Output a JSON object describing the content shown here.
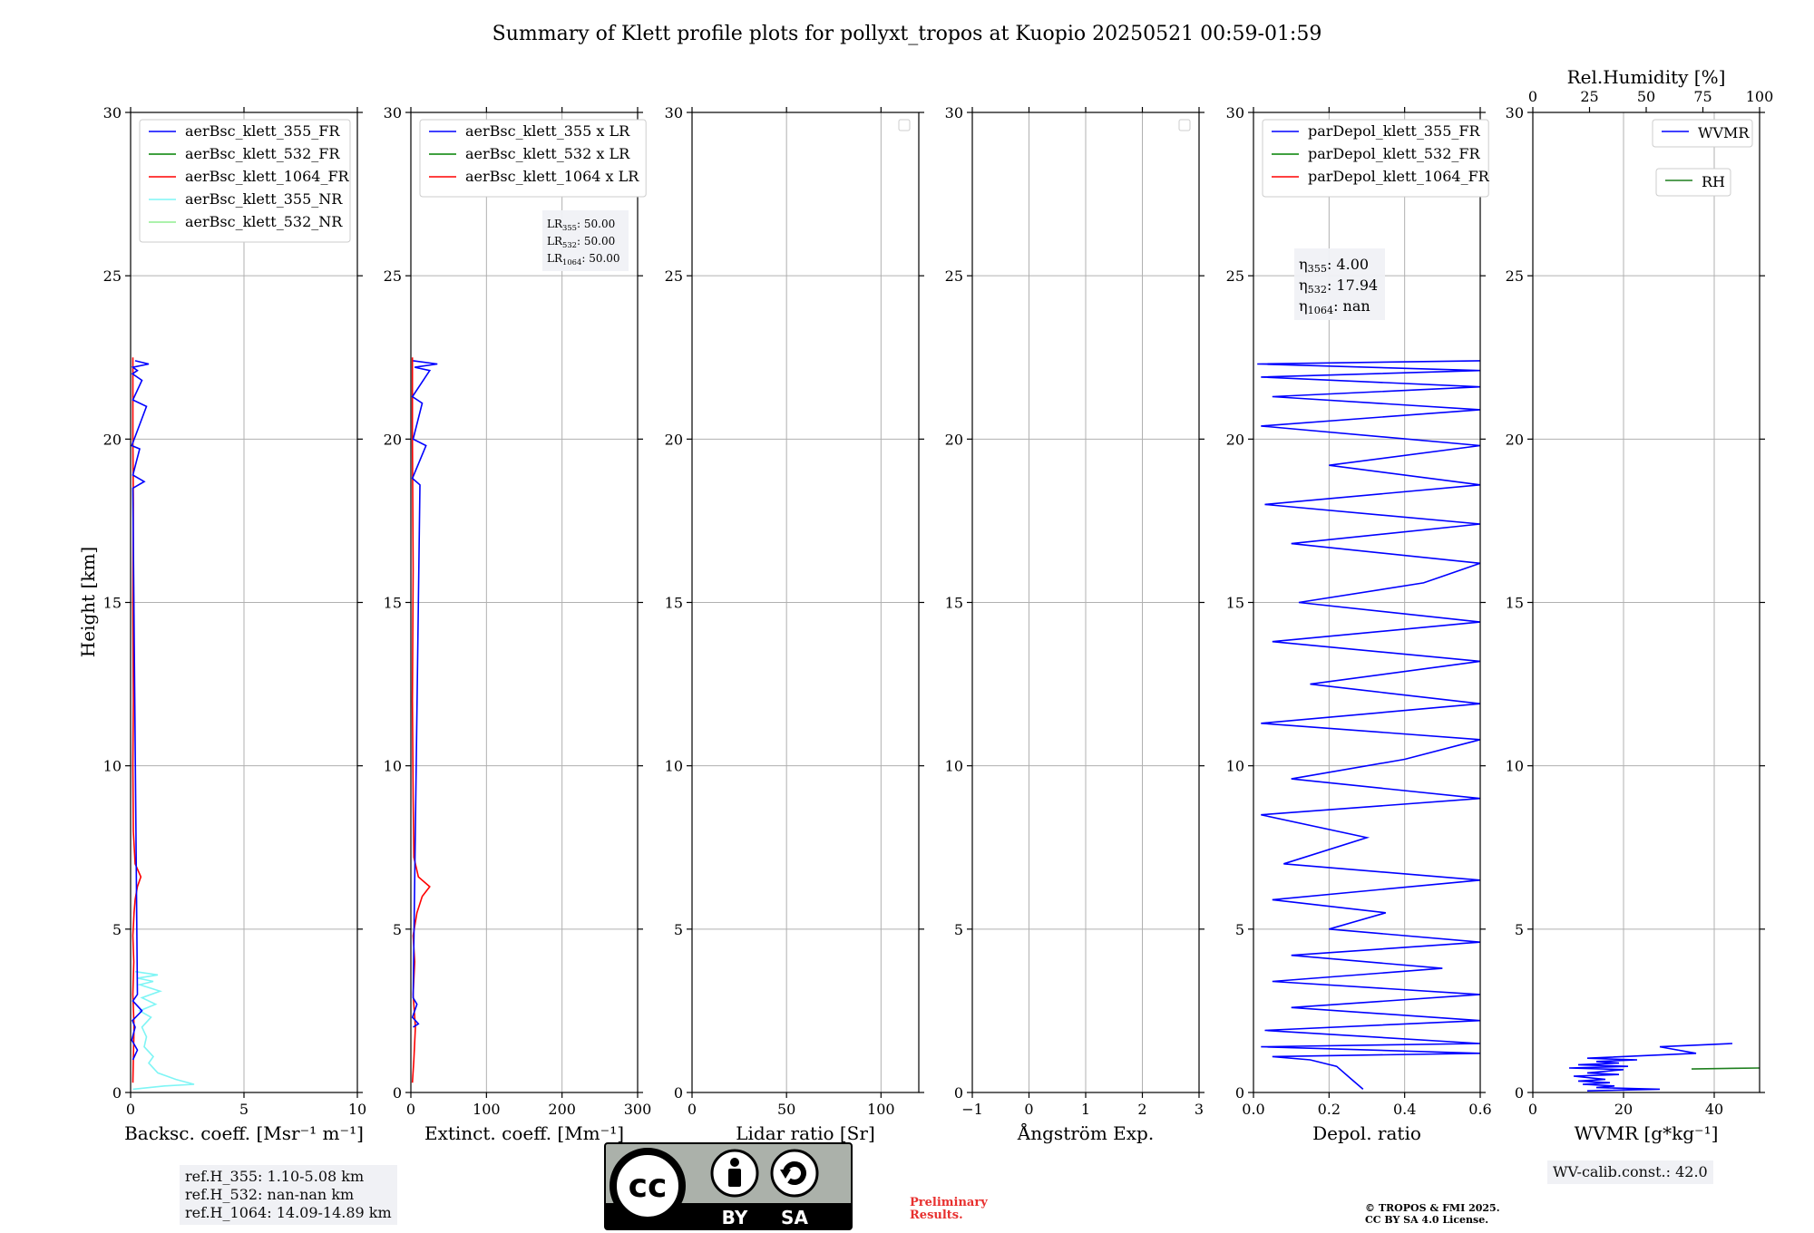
{
  "title": "Summary of Klett profile plots for pollyxt_tropos at Kuopio 20250521 00:59-01:59",
  "ylabel": "Height [km]",
  "y_ticks": [
    "0",
    "5",
    "10",
    "15",
    "20",
    "25",
    "30"
  ],
  "chart_data": [
    {
      "type": "line",
      "name": "backscatter",
      "xlabel": "Backsc. coeff. [Msr⁻¹ m⁻¹]",
      "xlim": [
        0,
        10
      ],
      "ylim": [
        0,
        30
      ],
      "x_ticks": [
        "0",
        "5",
        "10"
      ],
      "legend": [
        "aerBsc_klett_355_FR",
        "aerBsc_klett_532_FR",
        "aerBsc_klett_1064_FR",
        "aerBsc_klett_355_NR",
        "aerBsc_klett_532_NR"
      ],
      "series": [
        {
          "name": "aerBsc_klett_1064_FR",
          "color": "#ff0000",
          "x": [
            0.1,
            0.12,
            0.15,
            0.1,
            0.14,
            0.1,
            0.15,
            0.2,
            0.3,
            0.45,
            0.2,
            0.12,
            0.1,
            0.12,
            0.1,
            0.12,
            0.1,
            0.1
          ],
          "y": [
            0.3,
            1.0,
            2.0,
            3.0,
            4.0,
            4.8,
            5.5,
            5.9,
            6.3,
            6.6,
            7.0,
            8.0,
            10.0,
            12.0,
            15.0,
            18.0,
            20.0,
            22.5
          ]
        },
        {
          "name": "aerBsc_klett_355_NR",
          "color": "#7ff5f5",
          "x": [
            0.1,
            1.5,
            2.8,
            2.0,
            1.2,
            0.8,
            1.0,
            0.6,
            0.7,
            0.5,
            0.9,
            0.4,
            1.1,
            0.5,
            1.3,
            0.4,
            1.0,
            0.3,
            1.2,
            0.2
          ],
          "y": [
            0.1,
            0.2,
            0.25,
            0.4,
            0.6,
            0.9,
            1.1,
            1.4,
            1.7,
            2.0,
            2.3,
            2.5,
            2.7,
            2.9,
            3.1,
            3.3,
            3.4,
            3.5,
            3.6,
            3.7
          ]
        },
        {
          "name": "aerBsc_klett_355_FR",
          "color": "#0000ff",
          "x": [
            0.1,
            0.3,
            0.05,
            0.2,
            0.08,
            0.5,
            0.1,
            0.3,
            0.1,
            0.6,
            0.1,
            0.4,
            0.05,
            0.7,
            0.1,
            0.5,
            0.08,
            0.3,
            0.1,
            0.8,
            0.2
          ],
          "y": [
            1.0,
            1.3,
            1.6,
            2.0,
            2.2,
            2.5,
            2.8,
            3.0,
            18.5,
            18.7,
            18.9,
            19.7,
            19.8,
            21.0,
            21.2,
            21.8,
            22.0,
            22.1,
            22.2,
            22.3,
            22.4
          ]
        }
      ]
    },
    {
      "type": "line",
      "name": "extinction",
      "xlabel": "Extinct. coeff. [Mm⁻¹]",
      "xlim": [
        0,
        300
      ],
      "ylim": [
        0,
        30
      ],
      "x_ticks": [
        "0",
        "100",
        "200",
        "300"
      ],
      "legend": [
        "aerBsc_klett_355 x LR",
        "aerBsc_klett_532 x LR",
        "aerBsc_klett_1064 x LR"
      ],
      "series": [
        {
          "name": "aerBsc_klett_1064 x LR",
          "color": "#ff0000",
          "x": [
            2,
            4,
            6,
            3,
            5,
            3,
            8,
            15,
            25,
            10,
            4,
            3,
            2,
            3,
            2,
            2
          ],
          "y": [
            0.3,
            1.0,
            2.0,
            3.0,
            4.0,
            4.8,
            5.5,
            6.0,
            6.3,
            6.6,
            7.2,
            9.0,
            12.0,
            16.0,
            20.0,
            22.5
          ]
        },
        {
          "name": "aerBsc_klett_355 x LR",
          "color": "#0000ff",
          "x": [
            3,
            10,
            2,
            8,
            3,
            12,
            2,
            20,
            3,
            15,
            2,
            25,
            5,
            35,
            3
          ],
          "y": [
            2.0,
            2.1,
            2.3,
            2.7,
            2.9,
            18.6,
            18.8,
            19.8,
            20.0,
            21.1,
            21.3,
            22.1,
            22.2,
            22.3,
            22.4
          ]
        }
      ],
      "annotation": {
        "LR355": "LR$_{355}$: 50.00",
        "LR532": "LR$_{532}$: 50.00",
        "LR1064": "LR$_{1064}$: 50.00"
      },
      "annotation_lines": [
        {
          "label": "LR",
          "sub": "355",
          "value": ": 50.00"
        },
        {
          "label": "LR",
          "sub": "532",
          "value": ": 50.00"
        },
        {
          "label": "LR",
          "sub": "1064",
          "value": ": 50.00"
        }
      ]
    },
    {
      "type": "line",
      "name": "lidar-ratio",
      "xlabel": "Lidar ratio [Sr]",
      "xlim": [
        0,
        120
      ],
      "ylim": [
        0,
        30
      ],
      "x_ticks": [
        "0",
        "50",
        "100"
      ],
      "series": []
    },
    {
      "type": "line",
      "name": "angstrom",
      "xlabel": "Ångström Exp.",
      "xlim": [
        -1,
        3
      ],
      "ylim": [
        0,
        30
      ],
      "x_ticks": [
        "−1",
        "0",
        "1",
        "2",
        "3"
      ],
      "series": []
    },
    {
      "type": "line",
      "name": "depol",
      "xlabel": "Depol. ratio",
      "xlim": [
        0,
        0.6
      ],
      "ylim": [
        0,
        30
      ],
      "x_ticks": [
        "0.0",
        "0.2",
        "0.4",
        "0.6"
      ],
      "legend": [
        "parDepol_klett_355_FR",
        "parDepol_klett_532_FR",
        "parDepol_klett_1064_FR"
      ],
      "annotation_lines": [
        {
          "label": "η",
          "sub": "355",
          "value": ": 4.00"
        },
        {
          "label": "η",
          "sub": "532",
          "value": ": 17.94"
        },
        {
          "label": "η",
          "sub": "1064",
          "value": ": nan"
        }
      ],
      "series": [
        {
          "name": "parDepol_klett_355_FR",
          "color": "#0000ff",
          "x": [
            0.29,
            0.26,
            0.22,
            0.15,
            0.05,
            0.6,
            0.02,
            0.6,
            0.03,
            0.6,
            0.1,
            0.6,
            0.05,
            0.5,
            0.1,
            0.6,
            0.2,
            0.35,
            0.05,
            0.6,
            0.08,
            0.3,
            0.02,
            0.6,
            0.1,
            0.4,
            0.6,
            0.02,
            0.6,
            0.15,
            0.6,
            0.05,
            0.6,
            0.12,
            0.45,
            0.6,
            0.1,
            0.6,
            0.03,
            0.6,
            0.2,
            0.6,
            0.02,
            0.6,
            0.05,
            0.6,
            0.02,
            0.6,
            0.01,
            0.6
          ],
          "y": [
            0.1,
            0.4,
            0.8,
            1.0,
            1.1,
            1.2,
            1.4,
            1.5,
            1.9,
            2.2,
            2.6,
            3.0,
            3.4,
            3.8,
            4.2,
            4.6,
            5.0,
            5.5,
            5.9,
            6.5,
            7.0,
            7.8,
            8.5,
            9.0,
            9.6,
            10.2,
            10.8,
            11.3,
            11.9,
            12.5,
            13.2,
            13.8,
            14.4,
            15.0,
            15.6,
            16.2,
            16.8,
            17.4,
            18.0,
            18.6,
            19.2,
            19.8,
            20.4,
            20.9,
            21.3,
            21.6,
            21.9,
            22.1,
            22.3,
            22.4
          ]
        }
      ]
    },
    {
      "type": "line",
      "name": "wvmr",
      "xlabel": "WVMR [g*kg⁻¹]",
      "xlim": [
        0,
        50
      ],
      "ylim": [
        0,
        30
      ],
      "x_ticks": [
        "0",
        "20",
        "40"
      ],
      "top_xlabel": "Rel.Humidity [%]",
      "top_xlim": [
        0,
        100
      ],
      "top_ticks": [
        "0",
        "25",
        "50",
        "75",
        "100"
      ],
      "legend": [
        "WVMR",
        "RH"
      ],
      "series": [
        {
          "name": "WVMR",
          "color": "#0000ff",
          "x": [
            12,
            28,
            14,
            18,
            11,
            17,
            10,
            16,
            9,
            19,
            12,
            20,
            8,
            21,
            10,
            19,
            14,
            23,
            12,
            36,
            28,
            44
          ],
          "y": [
            0.05,
            0.1,
            0.15,
            0.2,
            0.25,
            0.3,
            0.35,
            0.4,
            0.5,
            0.55,
            0.6,
            0.7,
            0.75,
            0.8,
            0.85,
            0.9,
            0.95,
            1.0,
            1.05,
            1.2,
            1.4,
            1.5
          ]
        },
        {
          "name": "RH",
          "color": "#1e7f1e",
          "x": [
            70,
            80,
            90,
            100
          ],
          "y": [
            0.72,
            0.73,
            0.74,
            0.75
          ]
        }
      ]
    }
  ],
  "footer": {
    "refH": [
      "ref.H_355: 1.10-5.08 km",
      "ref.H_532: nan-nan km",
      "ref.H_1064: 14.09-14.89 km"
    ],
    "wv_calib": "WV-calib.const.: 42.0",
    "preliminary": [
      "Preliminary",
      "Results."
    ],
    "copyright": [
      "© TROPOS & FMI 2025.",
      "CC BY SA 4.0 License."
    ],
    "cc_badge": {
      "text": "cc",
      "by": "BY",
      "sa": "SA"
    }
  },
  "colors": {
    "blue": "#0000ff",
    "green": "#008000",
    "red": "#ff0000",
    "cyan": "#7ff5f5",
    "lightgreen": "#90ee90",
    "grid": "#b0b0b0"
  }
}
